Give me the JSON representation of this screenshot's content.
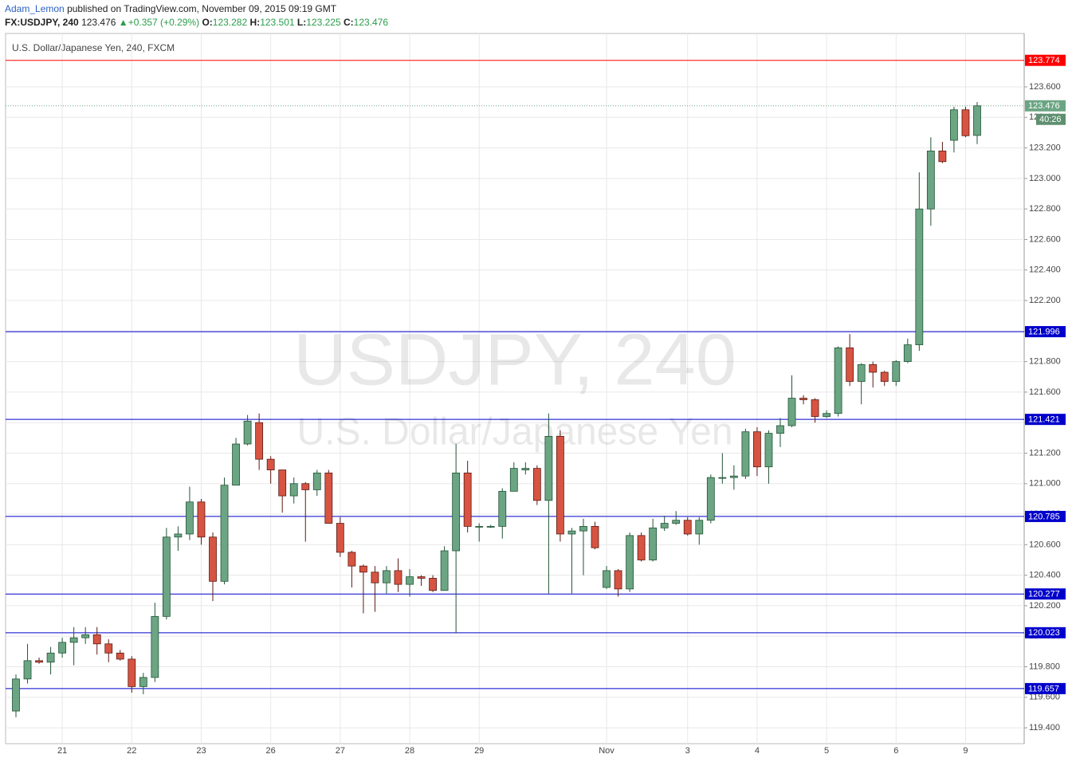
{
  "header": {
    "author": "Adam_Lemon",
    "published": "published on TradingView.com, November 09, 2015 09:19 GMT",
    "symbol": "FX:USDJPY, 240",
    "price": 123.476,
    "arrow": "▲",
    "change": "+0.357 (+0.29%)",
    "o_label": "O:",
    "o": 123.282,
    "h_label": "H:",
    "h": 123.501,
    "l_label": "L:",
    "l": 123.225,
    "c_label": "C:",
    "c": 123.476
  },
  "chart_data": {
    "type": "candlestick",
    "title": "U.S. Dollar/Japanese Yen, 240, FXCM",
    "watermark": "USDJPY, 240",
    "watermark_subtitle": "U.S. Dollar/Japanese Yen",
    "up_color": "#6ba583",
    "down_color": "#d75442",
    "up_border": "#225437",
    "down_border": "#5b1a13",
    "categories": [
      null,
      null,
      null,
      null,
      "21",
      null,
      null,
      null,
      null,
      null,
      "22",
      null,
      null,
      null,
      null,
      null,
      "23",
      null,
      null,
      null,
      null,
      null,
      "26",
      null,
      null,
      null,
      null,
      null,
      "27",
      null,
      null,
      null,
      null,
      null,
      "28",
      null,
      null,
      null,
      null,
      null,
      "29",
      null,
      null,
      null,
      null,
      null,
      null,
      null,
      null,
      null,
      null,
      "Nov",
      null,
      null,
      null,
      null,
      null,
      null,
      "3",
      null,
      null,
      null,
      null,
      null,
      "4",
      null,
      null,
      null,
      null,
      null,
      "5",
      null,
      null,
      null,
      null,
      null,
      "6",
      null,
      null,
      null,
      null,
      null,
      "9",
      null
    ],
    "open": [
      119.51,
      119.72,
      119.84,
      119.83,
      119.89,
      119.96,
      119.99,
      120.01,
      119.95,
      119.89,
      119.85,
      119.67,
      119.73,
      120.13,
      120.65,
      120.67,
      120.88,
      120.65,
      120.36,
      120.99,
      121.26,
      121.4,
      121.16,
      121.09,
      120.92,
      121.0,
      120.96,
      121.07,
      120.74,
      120.55,
      120.46,
      120.42,
      120.35,
      120.43,
      120.34,
      120.39,
      120.38,
      120.3,
      120.56,
      121.07,
      120.72,
      120.72,
      120.72,
      120.95,
      121.09,
      121.1,
      120.89,
      121.31,
      120.67,
      120.69,
      120.72,
      120.32,
      120.43,
      120.31,
      120.66,
      120.5,
      120.71,
      120.74,
      120.76,
      120.67,
      120.76,
      121.04,
      121.04,
      121.05,
      121.34,
      121.11,
      121.33,
      121.38,
      121.56,
      121.55,
      121.44,
      121.46,
      121.89,
      121.67,
      121.78,
      121.73,
      121.67,
      121.8,
      121.91,
      122.8,
      123.18,
      123.25,
      123.45,
      123.282
    ],
    "high": [
      119.75,
      119.95,
      119.86,
      119.93,
      119.99,
      120.06,
      120.06,
      120.06,
      119.98,
      119.91,
      119.87,
      119.76,
      120.22,
      120.71,
      120.72,
      120.98,
      120.9,
      120.68,
      121.04,
      121.3,
      121.45,
      121.46,
      121.18,
      121.09,
      121.04,
      121.01,
      121.09,
      121.09,
      120.78,
      120.56,
      120.47,
      120.46,
      120.46,
      120.51,
      120.44,
      120.4,
      120.4,
      120.59,
      121.26,
      121.15,
      120.74,
      120.73,
      120.97,
      121.14,
      121.14,
      121.12,
      121.46,
      121.35,
      120.71,
      120.77,
      120.75,
      120.46,
      120.44,
      120.68,
      120.68,
      120.77,
      120.79,
      120.82,
      120.78,
      120.78,
      121.06,
      121.2,
      121.12,
      121.36,
      121.37,
      121.35,
      121.43,
      121.71,
      121.58,
      121.56,
      121.48,
      121.9,
      121.98,
      121.79,
      121.8,
      121.74,
      121.81,
      121.95,
      123.04,
      123.27,
      123.24,
      123.47,
      123.47,
      123.501
    ],
    "low": [
      119.47,
      119.69,
      119.82,
      119.75,
      119.86,
      119.81,
      119.95,
      119.88,
      119.83,
      119.84,
      119.63,
      119.62,
      119.7,
      120.11,
      120.56,
      120.63,
      120.6,
      120.23,
      120.34,
      120.99,
      121.25,
      121.09,
      121.0,
      120.81,
      120.87,
      120.62,
      120.92,
      120.74,
      120.52,
      120.32,
      120.15,
      120.16,
      120.28,
      120.29,
      120.26,
      120.33,
      120.29,
      120.3,
      120.02,
      120.68,
      120.62,
      120.71,
      120.64,
      120.95,
      121.06,
      120.86,
      120.28,
      120.62,
      120.28,
      120.4,
      120.57,
      120.31,
      120.26,
      120.29,
      120.49,
      120.49,
      120.69,
      120.73,
      120.66,
      120.6,
      120.74,
      121.0,
      120.96,
      121.03,
      121.05,
      121.0,
      121.24,
      121.37,
      121.52,
      121.4,
      121.43,
      121.44,
      121.64,
      121.52,
      121.63,
      121.64,
      121.64,
      121.79,
      121.87,
      122.69,
      123.1,
      123.17,
      123.27,
      123.225
    ],
    "close": [
      119.72,
      119.84,
      119.83,
      119.89,
      119.96,
      119.99,
      120.01,
      119.95,
      119.89,
      119.85,
      119.67,
      119.73,
      120.13,
      120.65,
      120.67,
      120.88,
      120.65,
      120.36,
      120.99,
      121.26,
      121.41,
      121.16,
      121.09,
      120.92,
      121.0,
      120.96,
      121.07,
      120.74,
      120.55,
      120.46,
      120.42,
      120.35,
      120.43,
      120.34,
      120.39,
      120.38,
      120.3,
      120.56,
      121.07,
      120.72,
      120.72,
      120.72,
      120.95,
      121.1,
      121.1,
      120.89,
      121.31,
      120.67,
      120.69,
      120.72,
      120.58,
      120.43,
      120.31,
      120.66,
      120.5,
      120.71,
      120.74,
      120.76,
      120.67,
      120.76,
      121.04,
      121.04,
      121.05,
      121.34,
      121.11,
      121.33,
      121.38,
      121.56,
      121.55,
      121.44,
      121.46,
      121.89,
      121.67,
      121.78,
      121.73,
      121.67,
      121.8,
      121.91,
      122.8,
      123.18,
      123.11,
      123.45,
      123.28,
      123.476
    ],
    "ylim": [
      119.296,
      123.95
    ],
    "yticks": [
      {
        "value": 119.4,
        "label": "119.400"
      },
      {
        "value": 119.6,
        "label": "119.600"
      },
      {
        "value": 119.8,
        "label": "119.800"
      },
      {
        "value": 120.0,
        "label": "120.000"
      },
      {
        "value": 120.2,
        "label": "120.200"
      },
      {
        "value": 120.4,
        "label": "120.400"
      },
      {
        "value": 120.6,
        "label": "120.600"
      },
      {
        "value": 120.8,
        "label": "120.800"
      },
      {
        "value": 121.0,
        "label": "121.000"
      },
      {
        "value": 121.2,
        "label": "121.200"
      },
      {
        "value": 121.4,
        "label": "121.400"
      },
      {
        "value": 121.6,
        "label": "121.600"
      },
      {
        "value": 121.8,
        "label": "121.800"
      },
      {
        "value": 122.0,
        "label": "122.000"
      },
      {
        "value": 122.2,
        "label": "122.200"
      },
      {
        "value": 122.4,
        "label": "122.400"
      },
      {
        "value": 122.6,
        "label": "122.600"
      },
      {
        "value": 122.8,
        "label": "122.800"
      },
      {
        "value": 123.0,
        "label": "123.000"
      },
      {
        "value": 123.2,
        "label": "123.200"
      },
      {
        "value": 123.4,
        "label": "123.400"
      },
      {
        "value": 123.6,
        "label": "123.600"
      }
    ],
    "hlines": [
      {
        "value": 123.774,
        "color": "#ff0000"
      },
      {
        "value": 121.996,
        "color": "#0000cc"
      },
      {
        "value": 121.421,
        "color": "#0000cc"
      },
      {
        "value": 120.785,
        "color": "#0000cc"
      },
      {
        "value": 120.277,
        "color": "#0000cc"
      },
      {
        "value": 120.023,
        "color": "#0000cc"
      },
      {
        "value": 119.657,
        "color": "#0000cc"
      }
    ],
    "last_price": 123.476,
    "last_price_color": "#6ba583",
    "countdown": "40:26",
    "grid": true
  }
}
